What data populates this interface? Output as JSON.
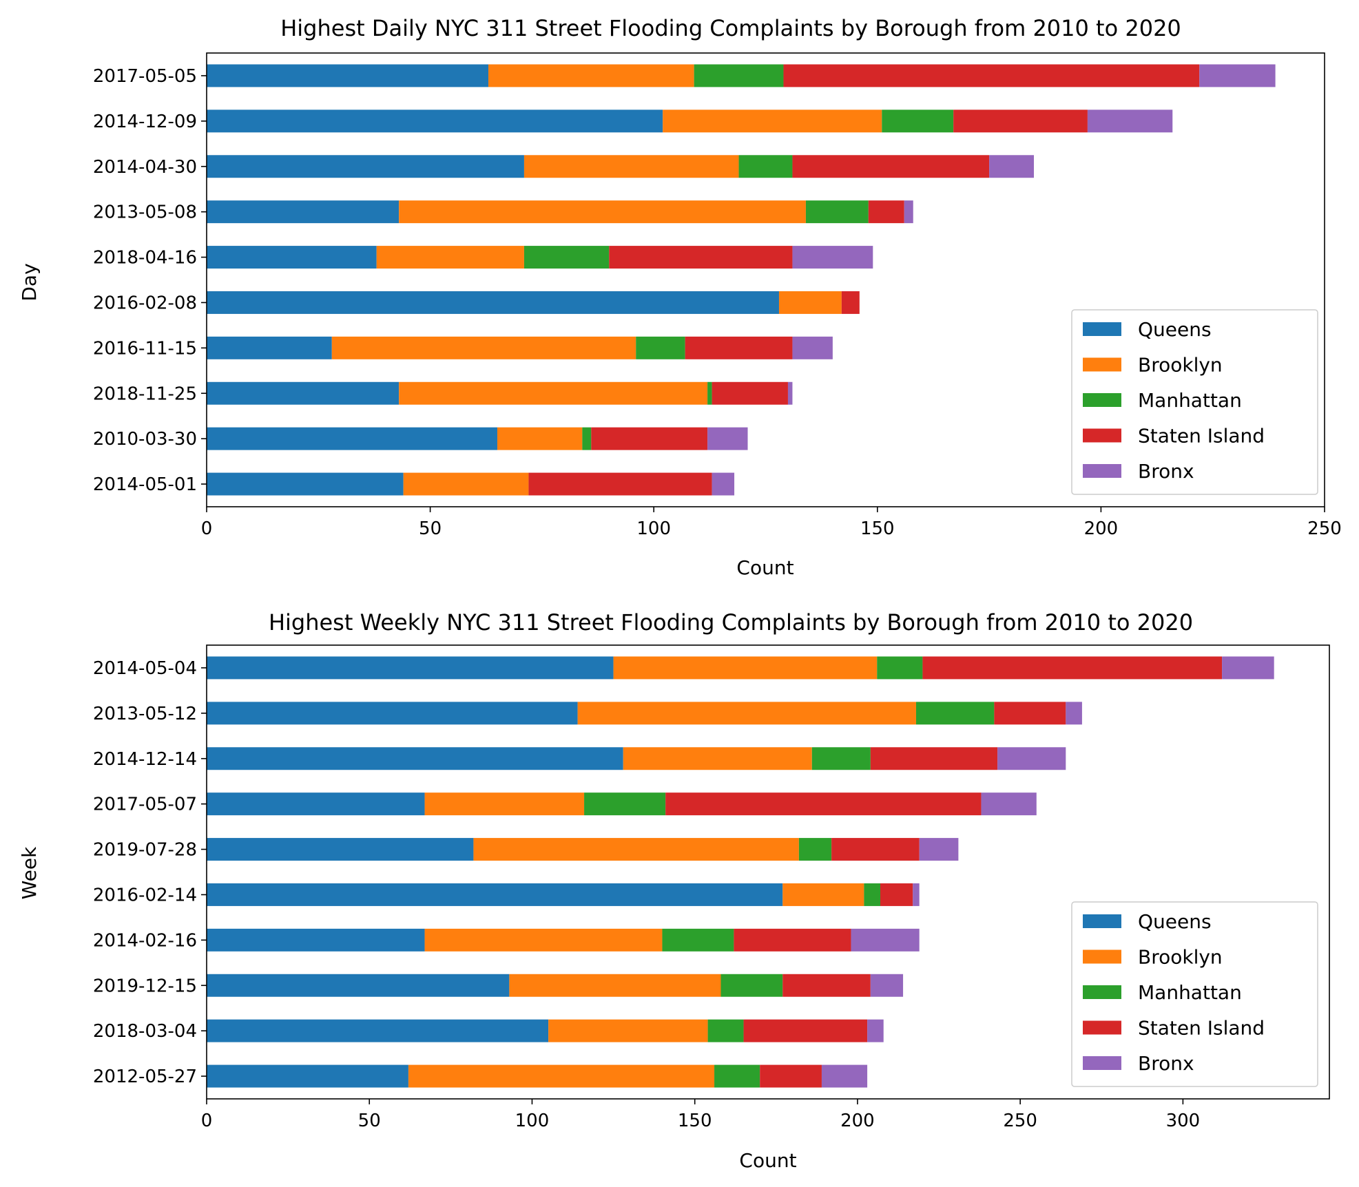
{
  "colors": {
    "Queens": "#1f77b4",
    "Brooklyn": "#ff7f0e",
    "Manhattan": "#2ca02c",
    "Staten Island": "#d62728",
    "Bronx": "#9467bd"
  },
  "chart_data": [
    {
      "id": "daily",
      "type": "bar",
      "orientation": "horizontal",
      "stacked": true,
      "title": "Highest Daily NYC 311 Street Flooding Complaints by Borough from 2010 to 2020",
      "xlabel": "Count",
      "ylabel": "Day",
      "xlim": [
        0,
        250
      ],
      "xticks": [
        0,
        50,
        100,
        150,
        200,
        250
      ],
      "legend_position": "lower right",
      "categories": [
        "2017-05-05",
        "2014-12-09",
        "2014-04-30",
        "2013-05-08",
        "2018-04-16",
        "2016-02-08",
        "2016-11-15",
        "2018-11-25",
        "2010-03-30",
        "2014-05-01"
      ],
      "series": [
        {
          "name": "Queens",
          "values": [
            63,
            102,
            71,
            43,
            38,
            128,
            28,
            43,
            65,
            44
          ]
        },
        {
          "name": "Brooklyn",
          "values": [
            46,
            49,
            48,
            91,
            33,
            14,
            68,
            69,
            19,
            28
          ]
        },
        {
          "name": "Manhattan",
          "values": [
            20,
            16,
            12,
            14,
            19,
            0,
            11,
            1,
            2,
            0
          ]
        },
        {
          "name": "Staten Island",
          "values": [
            93,
            30,
            44,
            8,
            41,
            4,
            24,
            17,
            26,
            41
          ]
        },
        {
          "name": "Bronx",
          "values": [
            17,
            19,
            10,
            2,
            18,
            0,
            9,
            1,
            9,
            5
          ]
        }
      ]
    },
    {
      "id": "weekly",
      "type": "bar",
      "orientation": "horizontal",
      "stacked": true,
      "title": "Highest Weekly NYC 311 Street Flooding Complaints by Borough from 2010 to 2020",
      "xlabel": "Count",
      "ylabel": "Week",
      "xlim": [
        0,
        345
      ],
      "xticks": [
        0,
        50,
        100,
        150,
        200,
        250,
        300
      ],
      "legend_position": "lower right",
      "categories": [
        "2014-05-04",
        "2013-05-12",
        "2014-12-14",
        "2017-05-07",
        "2019-07-28",
        "2016-02-14",
        "2014-02-16",
        "2019-12-15",
        "2018-03-04",
        "2012-05-27"
      ],
      "series": [
        {
          "name": "Queens",
          "values": [
            125,
            114,
            128,
            67,
            82,
            177,
            67,
            93,
            105,
            62
          ]
        },
        {
          "name": "Brooklyn",
          "values": [
            81,
            104,
            58,
            49,
            100,
            25,
            73,
            65,
            49,
            94
          ]
        },
        {
          "name": "Manhattan",
          "values": [
            14,
            24,
            18,
            25,
            10,
            5,
            22,
            19,
            11,
            14
          ]
        },
        {
          "name": "Staten Island",
          "values": [
            92,
            22,
            39,
            97,
            27,
            10,
            36,
            27,
            38,
            19
          ]
        },
        {
          "name": "Bronx",
          "values": [
            16,
            5,
            21,
            17,
            12,
            2,
            21,
            10,
            5,
            14
          ]
        }
      ]
    }
  ]
}
